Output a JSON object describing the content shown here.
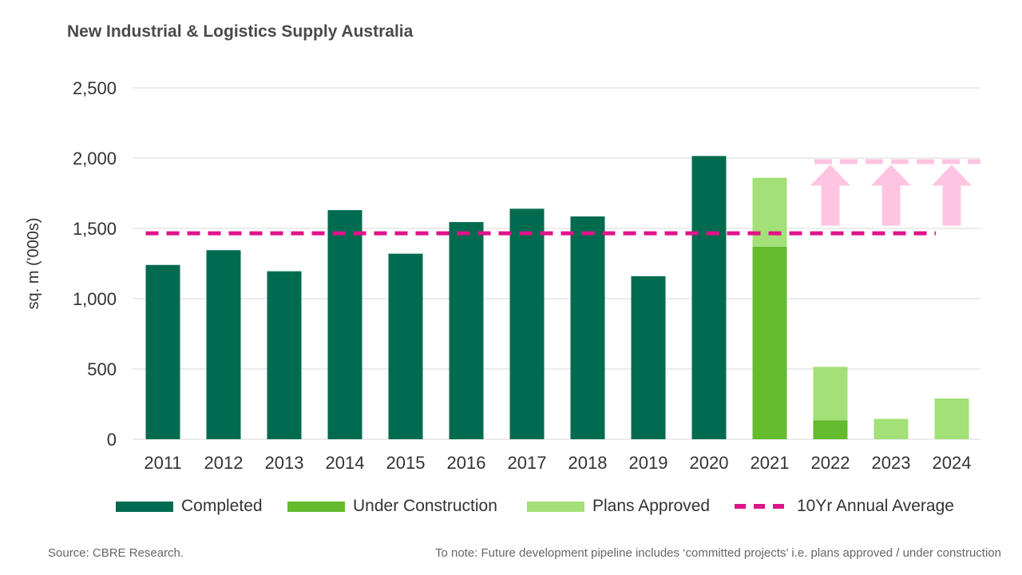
{
  "chart_data": {
    "type": "bar",
    "stacked": true,
    "title": "New Industrial & Logistics Supply Australia",
    "ylabel": "sq. m ('000s)",
    "xlabel": "",
    "ylim": [
      0,
      2500
    ],
    "yticks": [
      0,
      500,
      1000,
      1500,
      2000,
      2500
    ],
    "ytick_labels": [
      "0",
      "500",
      "1,000",
      "1,500",
      "2,000",
      "2,500"
    ],
    "grid": true,
    "legend_position": "bottom",
    "categories": [
      "2011",
      "2012",
      "2013",
      "2014",
      "2015",
      "2016",
      "2017",
      "2018",
      "2019",
      "2020",
      "2021",
      "2022",
      "2023",
      "2024"
    ],
    "series": [
      {
        "name": "Completed",
        "color": "#006b4f",
        "values": [
          1240,
          1345,
          1195,
          1630,
          1320,
          1545,
          1640,
          1585,
          1160,
          2015,
          0,
          0,
          0,
          0
        ]
      },
      {
        "name": "Under Construction",
        "color": "#64bb2e",
        "values": [
          0,
          0,
          0,
          0,
          0,
          0,
          0,
          0,
          0,
          0,
          1370,
          135,
          0,
          0
        ]
      },
      {
        "name": "Plans Approved",
        "color": "#a3e077",
        "values": [
          0,
          0,
          0,
          0,
          0,
          0,
          0,
          0,
          0,
          0,
          490,
          380,
          145,
          290
        ]
      }
    ],
    "reference_lines": [
      {
        "name": "10Yr Annual Average",
        "value": 1465,
        "from": "2011",
        "to": "2024",
        "color": "#e0138a",
        "style": "dashed"
      },
      {
        "value": 1975,
        "from": "2022",
        "to": "2024",
        "color": "#ffc4e2",
        "style": "dashed"
      }
    ],
    "arrows": {
      "from_value": 1520,
      "to_value": 1975,
      "categories": [
        "2022",
        "2023",
        "2024"
      ],
      "color": "#ffc4e2"
    }
  },
  "legend": {
    "completed": "Completed",
    "under_construction": "Under Construction",
    "plans_approved": "Plans Approved",
    "average": "10Yr Annual Average"
  },
  "footer": {
    "source": "Source: CBRE Research.",
    "note": "To note: Future development pipeline includes ‘committed projects’ i.e. plans approved / under construction"
  }
}
